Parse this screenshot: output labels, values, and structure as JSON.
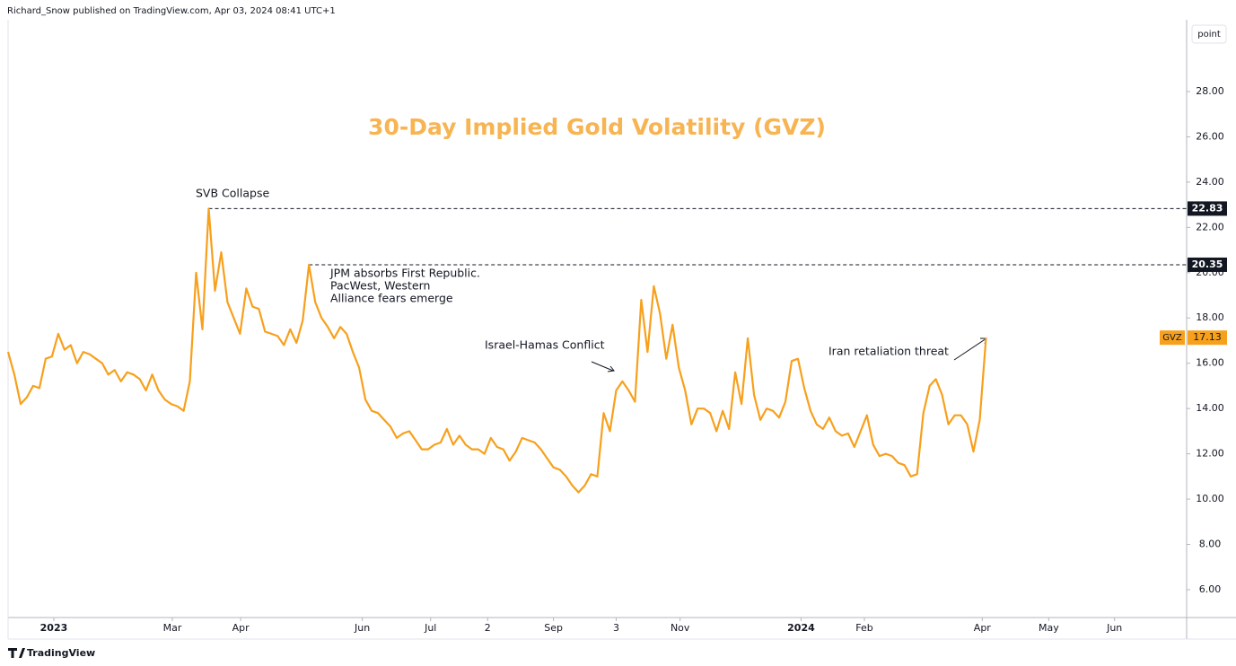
{
  "header": "Richard_Snow published on TradingView.com, Apr 03, 2024 08:41 UTC+1",
  "footer": "TradingView",
  "button": "point",
  "chart_data": {
    "type": "line",
    "title": "30-Day Implied Gold Volatility (GVZ)",
    "series": [
      {
        "name": "GVZ",
        "color": "#f7a01c",
        "values": [
          16.5,
          15.5,
          14.2,
          14.5,
          15.0,
          14.9,
          16.2,
          16.3,
          17.3,
          16.6,
          16.8,
          16.0,
          16.5,
          16.4,
          16.2,
          16.0,
          15.5,
          15.7,
          15.2,
          15.6,
          15.5,
          15.3,
          14.8,
          15.5,
          14.8,
          14.4,
          14.2,
          14.1,
          13.9,
          15.2,
          20.0,
          17.5,
          22.83,
          19.2,
          20.9,
          18.7,
          18.0,
          17.3,
          19.3,
          18.5,
          18.4,
          17.4,
          17.3,
          17.2,
          16.8,
          17.5,
          16.9,
          17.9,
          20.35,
          18.7,
          18.0,
          17.6,
          17.1,
          17.6,
          17.3,
          16.5,
          15.8,
          14.4,
          13.9,
          13.8,
          13.5,
          13.2,
          12.7,
          12.9,
          13.0,
          12.6,
          12.2,
          12.2,
          12.4,
          12.5,
          13.1,
          12.4,
          12.8,
          12.4,
          12.2,
          12.2,
          12.0,
          12.7,
          12.3,
          12.2,
          11.7,
          12.1,
          12.7,
          12.6,
          12.5,
          12.2,
          11.8,
          11.4,
          11.3,
          11.0,
          10.6,
          10.3,
          10.6,
          11.1,
          11.0,
          13.8,
          13.0,
          14.8,
          15.2,
          14.8,
          14.3,
          18.8,
          16.5,
          19.4,
          18.2,
          16.2,
          17.7,
          15.8,
          14.8,
          13.3,
          14.0,
          14.0,
          13.8,
          13.0,
          13.9,
          13.1,
          15.6,
          14.2,
          17.1,
          14.6,
          13.5,
          14.0,
          13.9,
          13.6,
          14.3,
          16.1,
          16.2,
          14.9,
          13.9,
          13.3,
          13.1,
          13.6,
          13.0,
          12.8,
          12.9,
          12.3,
          13.0,
          13.7,
          12.4,
          11.9,
          12.0,
          11.9,
          11.6,
          11.5,
          11.0,
          11.1,
          13.8,
          15.0,
          15.3,
          14.6,
          13.3,
          13.7,
          13.7,
          13.3,
          12.1,
          13.5,
          17.13
        ]
      }
    ],
    "xlim": [
      0,
      188
    ],
    "xticks": [
      {
        "value": 7.3,
        "label": "2023"
      },
      {
        "value": 26.2,
        "label": "Mar"
      },
      {
        "value": 37.1,
        "label": "Apr"
      },
      {
        "value": 56.5,
        "label": "Jun"
      },
      {
        "value": 67.4,
        "label": "Jul"
      },
      {
        "value": 76.5,
        "label": "2"
      },
      {
        "value": 87,
        "label": "Sep"
      },
      {
        "value": 97,
        "label": "3"
      },
      {
        "value": 107.2,
        "label": "Nov"
      },
      {
        "value": 126.5,
        "label": "2024"
      },
      {
        "value": 136.6,
        "label": "Feb"
      },
      {
        "value": 155.4,
        "label": "Apr"
      },
      {
        "value": 166,
        "label": "May"
      },
      {
        "value": 176.5,
        "label": "Jun"
      }
    ],
    "ylim": [
      4.77,
      31.17
    ],
    "yticks": [
      {
        "value": 6,
        "label": "6.00"
      },
      {
        "value": 8,
        "label": "8.00"
      },
      {
        "value": 10,
        "label": "10.00"
      },
      {
        "value": 12,
        "label": "12.00"
      },
      {
        "value": 14,
        "label": "14.00"
      },
      {
        "value": 16,
        "label": "16.00"
      },
      {
        "value": 18,
        "label": "18.00"
      },
      {
        "value": 20,
        "label": "20.00"
      },
      {
        "value": 22,
        "label": "22.00"
      },
      {
        "value": 24,
        "label": "24.00"
      },
      {
        "value": 26,
        "label": "26.00"
      },
      {
        "value": 28,
        "label": "28.00"
      }
    ],
    "levels": [
      22.83,
      20.35
    ],
    "annotations": [
      "SVB Collapse",
      "JPM absorbs First Republic.",
      "PacWest, Western",
      "Alliance fears emerge",
      "Israel-Hamas Conflict",
      "Iran retaliation threat"
    ]
  }
}
